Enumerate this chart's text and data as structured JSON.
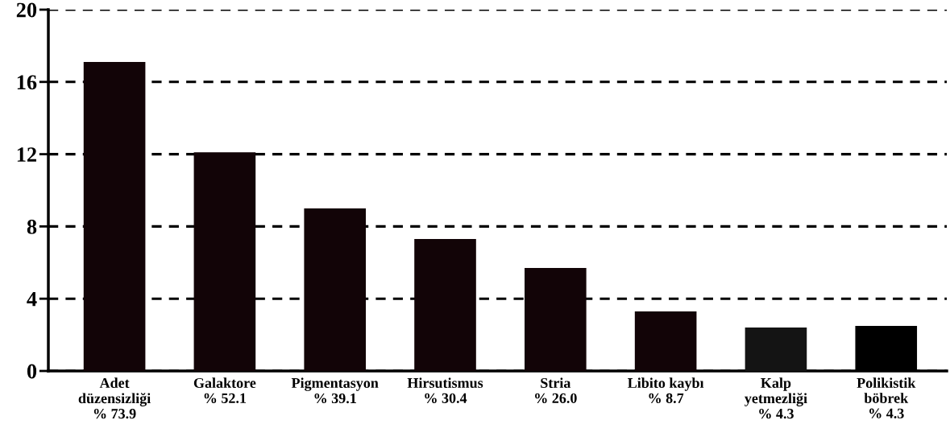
{
  "chart_data": {
    "type": "bar",
    "categories": [
      "Adet\ndüzensizliği\n% 73.9",
      "Galaktore\n% 52.1",
      "Pigmentasyon\n% 39.1",
      "Hirsutismus\n% 30.4",
      "Stria\n% 26.0",
      "Libito kaybı\n% 8.7",
      "Kalp\nyetmezliği\n% 4.3",
      "Polikistik\nböbrek\n% 4.3"
    ],
    "values": [
      17.1,
      12.1,
      9.0,
      7.3,
      5.7,
      3.3,
      2.4,
      2.5
    ],
    "colors": [
      "#120407",
      "#120407",
      "#120407",
      "#120407",
      "#120407",
      "#120407",
      "#141414",
      "#000000"
    ],
    "ylim": [
      0,
      20
    ],
    "yticks": [
      0,
      4,
      8,
      12,
      16,
      20
    ],
    "grid": "y",
    "line_style": "dashed"
  }
}
